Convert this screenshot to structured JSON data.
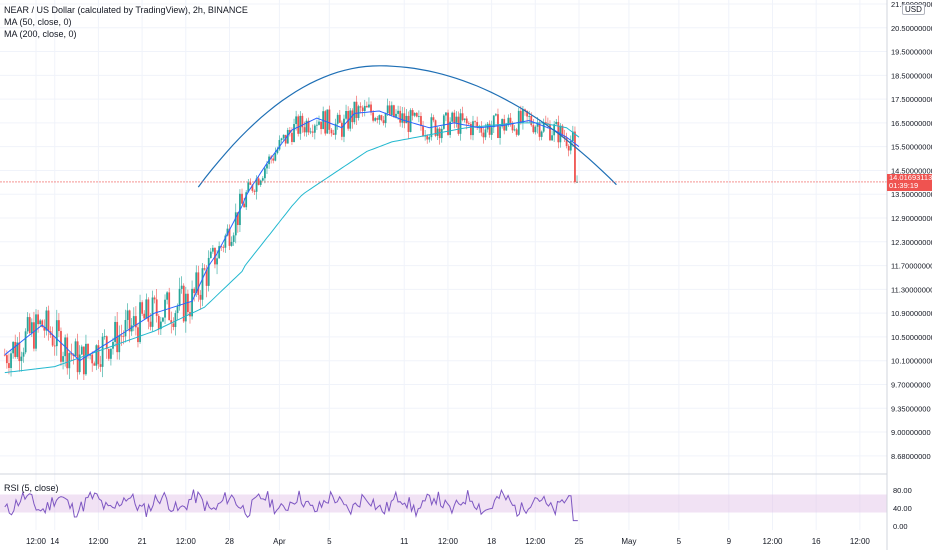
{
  "header": {
    "symbol_line": "NEAR / US Dollar (calculated by TradingView), 2h, BINANCE",
    "ma50_label": "MA (50, close, 0)",
    "ma200_label": "MA (200, close, 0)",
    "rsi_label": "RSI (5, close)",
    "currency_tag": "USD"
  },
  "current_price": {
    "price": "14.01693113",
    "countdown": "01:39:19",
    "value": 14.0169,
    "color": "#ef5350"
  },
  "colors": {
    "up": "#26a69a",
    "down": "#ef5350",
    "ma50": "#2962ff",
    "ma200": "#22b8cf",
    "arc": "#1e6fb5",
    "rsi_line": "#7e57c2",
    "rsi_band": "#e1bee7"
  },
  "chart_data": {
    "type": "candlestick",
    "price_axis_labels": [
      "21.50000000",
      "20.50000000",
      "19.50000000",
      "18.50000000",
      "17.50000000",
      "16.50000000",
      "15.50000000",
      "14.50000000",
      "13.50000000",
      "12.90000000",
      "12.30000000",
      "11.70000000",
      "11.30000000",
      "10.90000000",
      "10.50000000",
      "10.10000000",
      "9.70000000",
      "9.35000000",
      "9.00000000",
      "8.68000000"
    ],
    "price_axis_values": [
      21.5,
      20.5,
      19.5,
      18.5,
      17.5,
      16.5,
      15.5,
      14.5,
      13.5,
      12.9,
      12.3,
      11.7,
      11.3,
      10.9,
      10.5,
      10.1,
      9.7,
      9.35,
      9.0,
      8.68
    ],
    "time_axis_labels": [
      "12:00",
      "14",
      "12:00",
      "21",
      "12:00",
      "28",
      "Apr",
      "5",
      "11",
      "12:00",
      "18",
      "12:00",
      "25",
      "May",
      "5",
      "9",
      "12:00",
      "16",
      "12:00"
    ],
    "time_axis_days": [
      12.5,
      14,
      17.5,
      21,
      24.5,
      28,
      32,
      36,
      42,
      45.5,
      49,
      52.5,
      56,
      60,
      64,
      68,
      71.5,
      75,
      78.5
    ],
    "ma50_waypoints": [
      [
        10,
        10.2
      ],
      [
        13,
        10.7
      ],
      [
        16,
        10.1
      ],
      [
        19,
        10.5
      ],
      [
        22,
        10.9
      ],
      [
        25,
        11.1
      ],
      [
        27,
        12.0
      ],
      [
        29,
        13.2
      ],
      [
        31,
        14.8
      ],
      [
        33,
        16.2
      ],
      [
        35,
        16.7
      ],
      [
        37,
        16.3
      ],
      [
        38,
        16.9
      ],
      [
        40,
        17.0
      ],
      [
        42,
        16.6
      ],
      [
        44,
        16.3
      ],
      [
        46,
        16.5
      ],
      [
        48,
        16.3
      ],
      [
        50,
        16.4
      ],
      [
        52,
        16.6
      ],
      [
        54,
        16.2
      ],
      [
        55,
        15.9
      ],
      [
        56,
        15.5
      ]
    ],
    "ma200_waypoints": [
      [
        10,
        9.9
      ],
      [
        14,
        10.0
      ],
      [
        18,
        10.3
      ],
      [
        22,
        10.6
      ],
      [
        26,
        11.0
      ],
      [
        29,
        11.6
      ],
      [
        31,
        12.4
      ],
      [
        33,
        13.2
      ],
      [
        35,
        13.9
      ],
      [
        37,
        14.6
      ],
      [
        39,
        15.3
      ],
      [
        41,
        15.7
      ],
      [
        43,
        15.9
      ],
      [
        45,
        16.1
      ],
      [
        47,
        16.3
      ],
      [
        49,
        16.4
      ],
      [
        51,
        16.5
      ],
      [
        53,
        16.5
      ],
      [
        55,
        16.3
      ],
      [
        56,
        15.9
      ]
    ],
    "arc": {
      "start": [
        25.5,
        13.8
      ],
      "peak": [
        40,
        18.9
      ],
      "end": [
        59,
        13.9
      ]
    },
    "rsi_axis_labels": [
      "80.00",
      "40.00",
      "0.00"
    ],
    "rsi_axis_values": [
      80,
      40,
      0
    ],
    "rsi_band": [
      30,
      70
    ]
  }
}
